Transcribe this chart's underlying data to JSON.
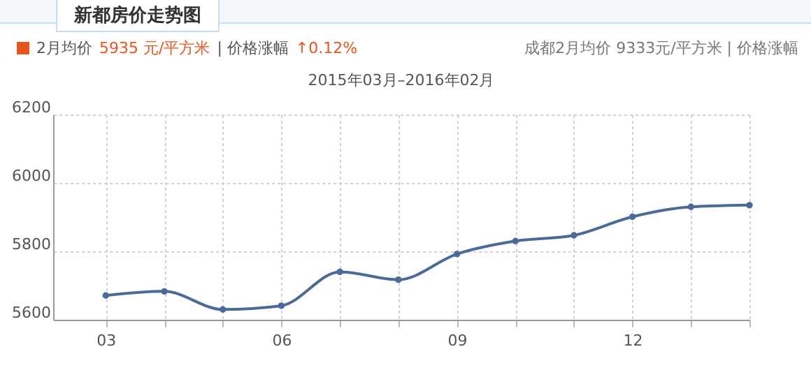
{
  "chart_data": {
    "type": "line",
    "title": "2015年03月–2016年02月",
    "annotations": [
      "新都房价走势图",
      "2月均价",
      "5935 元/平方米",
      "| 价格涨幅",
      "↑0.12%",
      "成都2月均价 9333元/平方米 | 价格涨幅"
    ],
    "categories": [
      "03",
      null,
      null,
      "06",
      null,
      null,
      "09",
      null,
      null,
      "12",
      null,
      null
    ],
    "series": [
      {
        "color": "#4a6b9a",
        "values": [
          5671,
          5683,
          5630,
          5641,
          5740,
          5717,
          5792,
          5830,
          5847,
          5901,
          5930,
          5935
        ]
      }
    ],
    "ylim": [
      5600,
      6200
    ],
    "yticks": [
      5600,
      5800,
      6000,
      6200
    ],
    "grid": true,
    "marker": "circle",
    "line_style": "solid"
  }
}
